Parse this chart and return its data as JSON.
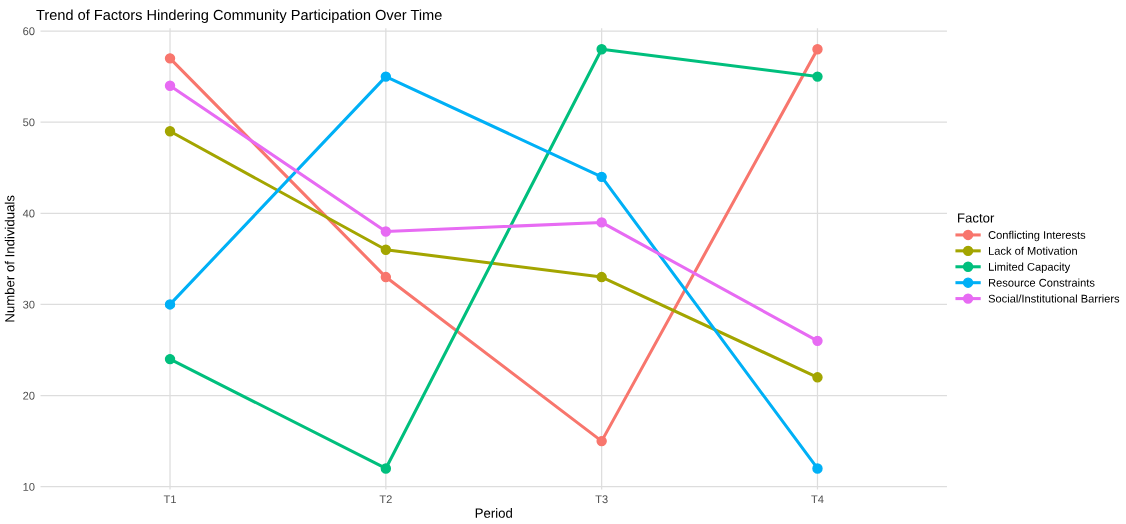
{
  "chart_data": {
    "type": "line",
    "title": "Trend of Factors Hindering Community Participation Over Time",
    "xlabel": "Period",
    "ylabel": "Number of Individuals",
    "legend_title": "Factor",
    "categories": [
      "T1",
      "T2",
      "T3",
      "T4"
    ],
    "series": [
      {
        "name": "Conflicting Interests",
        "color": "#f8766d",
        "values": [
          57,
          33,
          15,
          58
        ]
      },
      {
        "name": "Lack of Motivation",
        "color": "#a3a500",
        "values": [
          49,
          36,
          33,
          22
        ]
      },
      {
        "name": "Limited Capacity",
        "color": "#00bf7d",
        "values": [
          24,
          12,
          58,
          55
        ]
      },
      {
        "name": "Resource Constraints",
        "color": "#00b0f6",
        "values": [
          30,
          55,
          44,
          12
        ]
      },
      {
        "name": "Social/Institutional Barriers",
        "color": "#e76bf3",
        "values": [
          54,
          38,
          39,
          26
        ]
      }
    ],
    "ylim": [
      9.7,
      60.3
    ],
    "yticks": [
      10,
      20,
      30,
      40,
      50,
      60
    ],
    "grid": true,
    "legend": "right",
    "marker": "circle",
    "line_style": "solid"
  }
}
